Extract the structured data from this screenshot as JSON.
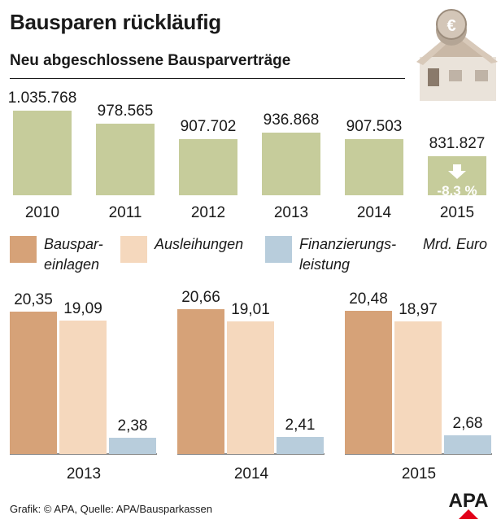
{
  "header": {
    "title": "Bausparen rückläufig",
    "subtitle": "Neu abgeschlossene Bausparverträge"
  },
  "colors": {
    "contracts_bar": "#c6cc9b",
    "change_badge": "#ffffff",
    "einlagen": "#d6a278",
    "ausleihungen": "#f5d8bd",
    "finanzierung": "#b8cddc",
    "apa_red": "#e2001a"
  },
  "legend": {
    "items": [
      {
        "label_line1": "Bauspar-",
        "label_line2": "einlagen",
        "color": "#d6a278"
      },
      {
        "label_line1": "Ausleihungen",
        "label_line2": "",
        "color": "#f5d8bd"
      },
      {
        "label_line1": "Finanzierungs-",
        "label_line2": "leistung",
        "color": "#b8cddc"
      }
    ],
    "unit": "Mrd. Euro"
  },
  "footer": {
    "source": "Grafik: © APA, Quelle: APA/Bausparkassen",
    "logo_text": "APA"
  },
  "chart_data": [
    {
      "type": "bar",
      "title": "Neu abgeschlossene Bausparverträge",
      "categories": [
        "2010",
        "2011",
        "2012",
        "2013",
        "2014",
        "2015"
      ],
      "values": [
        1035768,
        978565,
        907702,
        936868,
        907503,
        831827
      ],
      "value_labels": [
        "1.035.768",
        "978.565",
        "907.702",
        "936.868",
        "907.503",
        "831.827"
      ],
      "annotation": {
        "category": "2015",
        "text": "-8,3 %",
        "icon": "arrow-down-icon"
      },
      "decoration_icon": "house-with-euro-coin-icon"
    },
    {
      "type": "bar",
      "unit": "Mrd. Euro",
      "categories": [
        "2013",
        "2014",
        "2015"
      ],
      "series": [
        {
          "name": "Bauspareinlagen",
          "values": [
            20.35,
            20.66,
            20.48
          ],
          "labels": [
            "20,35",
            "20,66",
            "20,48"
          ]
        },
        {
          "name": "Ausleihungen",
          "values": [
            19.09,
            19.01,
            18.97
          ],
          "labels": [
            "19,09",
            "19,01",
            "18,97"
          ]
        },
        {
          "name": "Finanzierungsleistung",
          "values": [
            2.38,
            2.41,
            2.68
          ],
          "labels": [
            "2,38",
            "2,41",
            "2,68"
          ]
        }
      ]
    }
  ]
}
